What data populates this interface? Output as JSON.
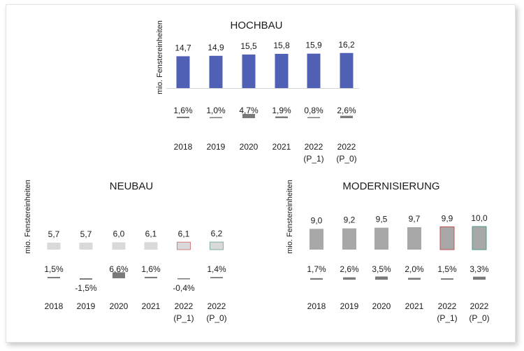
{
  "chart_data": [
    {
      "type": "bar",
      "title": "HOCHBAU",
      "ylabel": "mio. Fenstereinheiten",
      "categories": [
        [
          "2018"
        ],
        [
          "2019"
        ],
        [
          "2020"
        ],
        [
          "2021"
        ],
        [
          "2022",
          "(P_1)"
        ],
        [
          "2022",
          "(P_0)"
        ]
      ],
      "values": [
        14.7,
        14.9,
        15.5,
        15.8,
        15.9,
        16.2
      ],
      "value_labels": [
        "14,7",
        "14,9",
        "15,5",
        "15,8",
        "15,9",
        "16,2"
      ],
      "growth": [
        1.6,
        1.0,
        4.7,
        1.9,
        0.8,
        2.6
      ],
      "growth_labels": [
        "1,6%",
        "1,0%",
        "4,7%",
        "1,9%",
        "0,8%",
        "2,6%"
      ],
      "colors": {
        "bar": "#5060b4",
        "growth": "#7a7a7a"
      }
    },
    {
      "type": "bar",
      "title": "NEUBAU",
      "ylabel": "mio. Fenstereinheiten",
      "categories": [
        [
          "2018"
        ],
        [
          "2019"
        ],
        [
          "2020"
        ],
        [
          "2021"
        ],
        [
          "2022",
          "(P_1)"
        ],
        [
          "2022",
          "(P_0)"
        ]
      ],
      "values": [
        5.7,
        5.7,
        6.0,
        6.1,
        6.1,
        6.2
      ],
      "value_labels": [
        "5,7",
        "5,7",
        "6,0",
        "6,1",
        "6,1",
        "6,2"
      ],
      "growth": [
        1.5,
        -1.5,
        6.6,
        1.6,
        -0.4,
        1.4
      ],
      "growth_labels": [
        "1,5%",
        "-1,5%",
        "6,6%",
        "1,6%",
        "-0,4%",
        "1,4%"
      ],
      "colors": {
        "bar": "#d9d9d9",
        "growth": "#7a7a7a",
        "p1_outline": "#d08080",
        "p0_outline": "#7fb0a8"
      }
    },
    {
      "type": "bar",
      "title": "MODERNISIERUNG",
      "ylabel": "mio. Fenstereinheiten",
      "categories": [
        [
          "2018"
        ],
        [
          "2019"
        ],
        [
          "2020"
        ],
        [
          "2021"
        ],
        [
          "2022",
          "(P_1)"
        ],
        [
          "2022",
          "(P_0)"
        ]
      ],
      "values": [
        9.0,
        9.2,
        9.5,
        9.7,
        9.9,
        10.0
      ],
      "value_labels": [
        "9,0",
        "9,2",
        "9,5",
        "9,7",
        "9,9",
        "10,0"
      ],
      "growth": [
        1.7,
        2.6,
        3.5,
        2.0,
        1.5,
        3.3
      ],
      "growth_labels": [
        "1,7%",
        "2,6%",
        "3,5%",
        "2,0%",
        "1,5%",
        "3,3%"
      ],
      "colors": {
        "bar": "#a8a8a8",
        "growth": "#7a7a7a",
        "p1_outline": "#c05050",
        "p0_outline": "#4a9a8a"
      }
    }
  ]
}
